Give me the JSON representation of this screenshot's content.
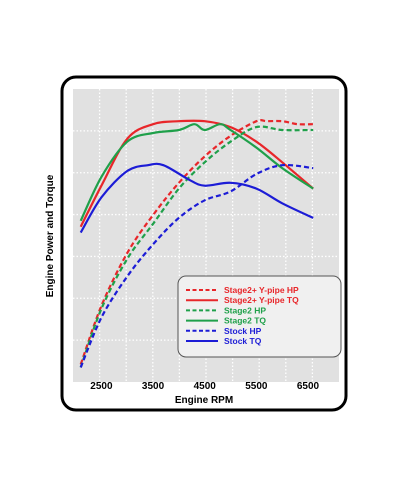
{
  "chart_data": {
    "type": "line",
    "title": "",
    "xlabel": "Engine RPM",
    "ylabel": "Engine Power and Torque",
    "xlim": [
      1950,
      7100
    ],
    "ylim": [
      0,
      100
    ],
    "x_ticks": [
      "2500",
      "3500",
      "4500",
      "5500",
      "6500"
    ],
    "x_tick_values": [
      2500,
      3500,
      4500,
      5500,
      6500
    ],
    "grid": true,
    "y_tick_labels_shown": false,
    "legend_position": "bottom-right",
    "series": [
      {
        "name": "Stage2+ Y-pipe HP",
        "color": "#e8262a",
        "dash": true,
        "x": [
          2100,
          2500,
          3000,
          3500,
          4000,
          4500,
          5000,
          5500,
          5700,
          6000,
          6300,
          6600
        ],
        "y": [
          6,
          26,
          44,
          57,
          68,
          77,
          84,
          89,
          89,
          89,
          88,
          88
        ]
      },
      {
        "name": "Stage2+ Y-pipe TQ",
        "color": "#e8262a",
        "dash": false,
        "x": [
          2100,
          2500,
          3000,
          3500,
          4000,
          4500,
          5000,
          5500,
          6000,
          6600
        ],
        "y": [
          53,
          67,
          83,
          88,
          89,
          89,
          87,
          82,
          75,
          66
        ]
      },
      {
        "name": "Stage2 HP",
        "color": "#1fa04a",
        "dash": true,
        "x": [
          2100,
          2500,
          3000,
          3500,
          4000,
          4500,
          5000,
          5500,
          6000,
          6600
        ],
        "y": [
          5,
          25,
          42,
          54,
          66,
          75,
          82,
          87,
          86,
          86
        ]
      },
      {
        "name": "Stage2 TQ",
        "color": "#1fa04a",
        "dash": false,
        "x": [
          2100,
          2500,
          3000,
          3500,
          4000,
          4300,
          4500,
          4800,
          5000,
          5500,
          6000,
          6600
        ],
        "y": [
          55,
          70,
          82,
          85,
          86,
          88,
          86,
          88,
          86,
          80,
          73,
          66
        ]
      },
      {
        "name": "Stock HP",
        "color": "#1c1cd6",
        "dash": true,
        "x": [
          2100,
          2500,
          3000,
          3500,
          4000,
          4500,
          5000,
          5500,
          6000,
          6600
        ],
        "y": [
          5,
          22,
          36,
          47,
          56,
          62,
          65,
          71,
          74,
          73
        ]
      },
      {
        "name": "Stock TQ",
        "color": "#1c1cd6",
        "dash": false,
        "x": [
          2100,
          2500,
          3000,
          3400,
          3700,
          4200,
          4500,
          5000,
          5500,
          6000,
          6600
        ],
        "y": [
          51,
          63,
          72,
          74,
          74,
          69,
          67,
          68,
          66,
          61,
          56
        ]
      }
    ]
  }
}
